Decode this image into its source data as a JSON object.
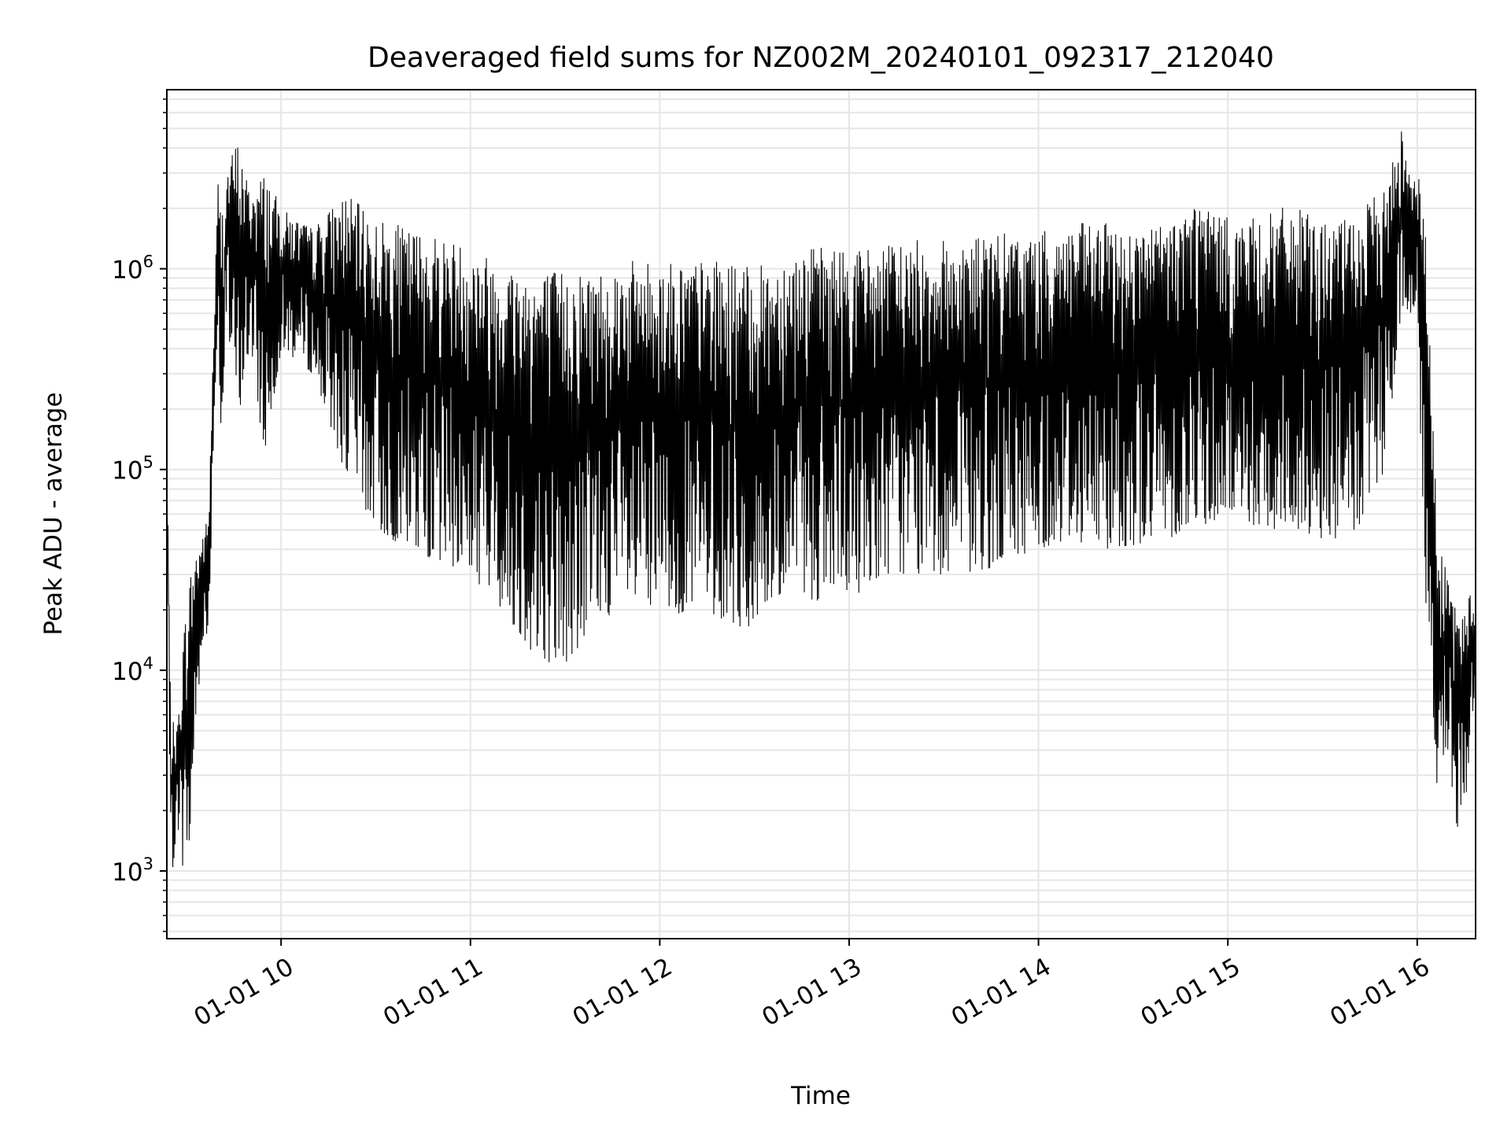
{
  "chart_data": {
    "type": "line",
    "title": "Deaveraged field sums for NZ002M_20240101_092317_212040",
    "xlabel": "Time",
    "ylabel": "Peak ADU - average",
    "y_scale": "log",
    "ylim": [
      460,
      7800000
    ],
    "xlim": [
      "2024-01-01 09:23:48",
      "2024-01-01 16:18:30"
    ],
    "grid": true,
    "line_color": "#000000",
    "grid_color": "#e6e6e6",
    "x_ticks": [
      {
        "x": "2024-01-01 10:00",
        "label": "01-01 10"
      },
      {
        "x": "2024-01-01 11:00",
        "label": "01-01 11"
      },
      {
        "x": "2024-01-01 12:00",
        "label": "01-01 12"
      },
      {
        "x": "2024-01-01 13:00",
        "label": "01-01 13"
      },
      {
        "x": "2024-01-01 14:00",
        "label": "01-01 14"
      },
      {
        "x": "2024-01-01 15:00",
        "label": "01-01 15"
      },
      {
        "x": "2024-01-01 16:00",
        "label": "01-01 16"
      }
    ],
    "y_ticks": [
      {
        "y": 1000,
        "base": "10",
        "exp": "3"
      },
      {
        "y": 10000,
        "base": "10",
        "exp": "4"
      },
      {
        "y": 100000,
        "base": "10",
        "exp": "5"
      },
      {
        "y": 1000000,
        "base": "10",
        "exp": "6"
      }
    ],
    "series": [
      {
        "x": [
          "2024-01-01 09:23:48",
          "2024-01-01 09:25:00",
          "2024-01-01 09:27:00",
          "2024-01-01 09:29:00",
          "2024-01-01 09:31:00",
          "2024-01-01 09:33:00",
          "2024-01-01 09:35:00",
          "2024-01-01 09:37:00",
          "2024-01-01 09:39:00",
          "2024-01-01 09:40:00",
          "2024-01-01 09:41:00",
          "2024-01-01 09:43:00",
          "2024-01-01 09:46:00",
          "2024-01-01 09:50:00",
          "2024-01-01 09:55:00",
          "2024-01-01 10:00:00",
          "2024-01-01 10:10:00",
          "2024-01-01 10:20:00",
          "2024-01-01 10:30:00",
          "2024-01-01 10:40:00",
          "2024-01-01 10:50:00",
          "2024-01-01 11:00:00",
          "2024-01-01 11:10:00",
          "2024-01-01 11:20:00",
          "2024-01-01 11:30:00",
          "2024-01-01 11:40:00",
          "2024-01-01 11:50:00",
          "2024-01-01 12:00:00",
          "2024-01-01 12:10:00",
          "2024-01-01 12:20:00",
          "2024-01-01 12:30:00",
          "2024-01-01 12:40:00",
          "2024-01-01 12:50:00",
          "2024-01-01 13:00:00",
          "2024-01-01 13:10:00",
          "2024-01-01 13:20:00",
          "2024-01-01 13:30:00",
          "2024-01-01 13:40:00",
          "2024-01-01 13:50:00",
          "2024-01-01 14:00:00",
          "2024-01-01 14:10:00",
          "2024-01-01 14:20:00",
          "2024-01-01 14:30:00",
          "2024-01-01 14:40:00",
          "2024-01-01 14:50:00",
          "2024-01-01 15:00:00",
          "2024-01-01 15:10:00",
          "2024-01-01 15:20:00",
          "2024-01-01 15:30:00",
          "2024-01-01 15:40:00",
          "2024-01-01 15:50:00",
          "2024-01-01 15:55:00",
          "2024-01-01 16:00:00",
          "2024-01-01 16:02:00",
          "2024-01-01 16:04:00",
          "2024-01-01 16:06:00",
          "2024-01-01 16:08:00",
          "2024-01-01 16:10:00",
          "2024-01-01 16:12:00",
          "2024-01-01 16:14:00",
          "2024-01-01 16:16:00",
          "2024-01-01 16:18:30"
        ],
        "upper": [
          150000,
          6000,
          5000,
          15000,
          30000,
          40000,
          47000,
          60000,
          800000,
          2800000,
          1900000,
          3200000,
          4500000,
          2500000,
          3100000,
          2000000,
          1600000,
          2400000,
          1800000,
          1600000,
          1500000,
          1300000,
          1100000,
          1000000,
          1000000,
          1000000,
          1100000,
          1100000,
          1100000,
          1100000,
          1000000,
          1200000,
          1300000,
          1300000,
          1300000,
          1400000,
          1400000,
          1500000,
          1500000,
          1500000,
          1700000,
          1700000,
          1600000,
          1700000,
          2300000,
          1800000,
          1800000,
          2100000,
          1700000,
          1800000,
          2600000,
          5100000,
          2900000,
          2800000,
          440000,
          100000,
          35000,
          30000,
          22000,
          18000,
          25000,
          22000
        ],
        "lower": [
          90000,
          700,
          1800,
          1000,
          1100,
          5000,
          14000,
          14000,
          200000,
          600000,
          120000,
          500000,
          160000,
          400000,
          110000,
          400000,
          300000,
          100000,
          50000,
          40000,
          35000,
          30000,
          20000,
          12000,
          10000,
          18000,
          20000,
          18000,
          20000,
          18000,
          15000,
          25000,
          22000,
          22000,
          30000,
          30000,
          30000,
          30000,
          35000,
          40000,
          45000,
          40000,
          42000,
          45000,
          50000,
          60000,
          50000,
          50000,
          45000,
          45000,
          100000,
          600000,
          600000,
          32000,
          9000,
          2500,
          3200,
          4000,
          1800,
          1200,
          3000,
          9000
        ]
      }
    ]
  }
}
